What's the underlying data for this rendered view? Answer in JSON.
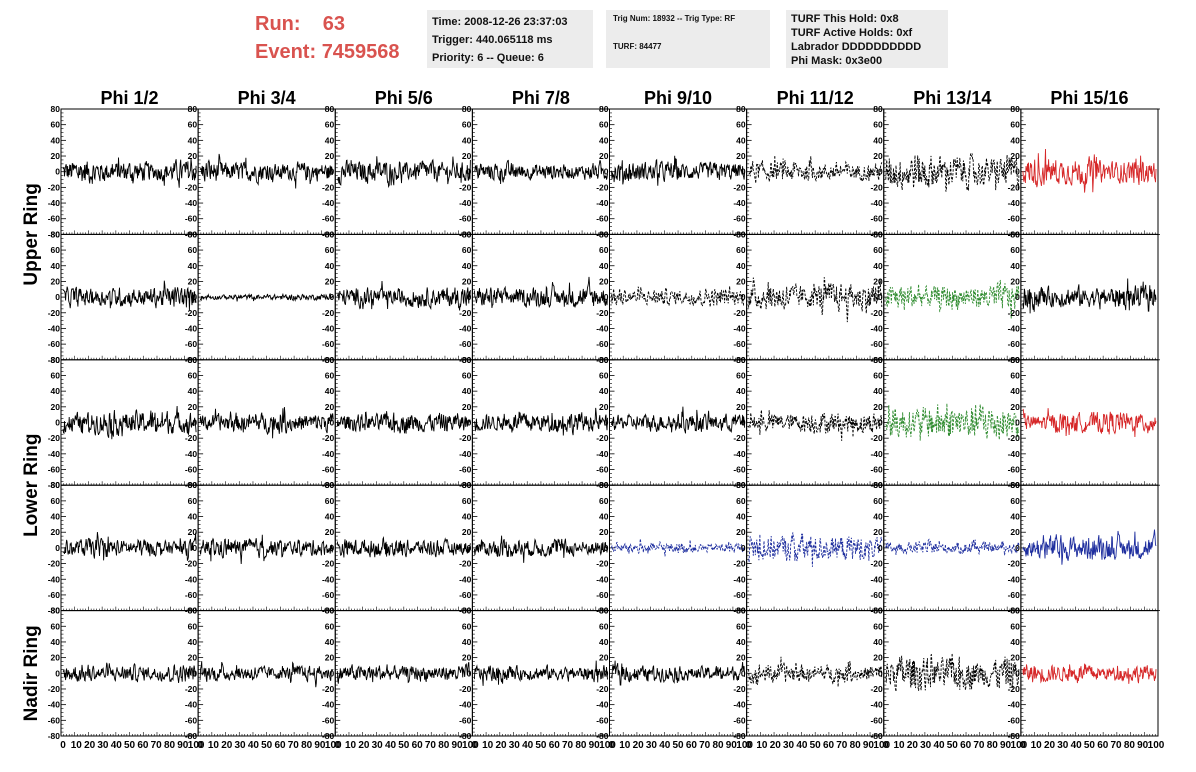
{
  "header": {
    "run_label": "Run:",
    "run_value": "63",
    "event_label": "Event:",
    "event_value": "7459568"
  },
  "info_time": {
    "time": "Time: 2008-12-26 23:37:03",
    "trigger": "Trigger: 440.065118 ms",
    "priority": "Priority: 6 -- Queue: 6"
  },
  "info_trig": {
    "trig": "Trig Num: 18932 -- Trig Type: RF",
    "turf": "TURF: 84477"
  },
  "info_turf": {
    "hold": "TURF This Hold: 0x8",
    "active": "TURF Active Holds: 0xf",
    "labrador": "Labrador DDDDDDDDDD",
    "phimask": "Phi Mask: 0x3e00"
  },
  "colors": {
    "header_text": "#d9534f",
    "info_bg": "#ececec",
    "black": "#000000",
    "red": "#d62728",
    "green": "#2e8b2e",
    "blue": "#1f2f9f"
  },
  "chart_data": {
    "type": "line",
    "column_labels": [
      "Phi 1/2",
      "Phi 3/4",
      "Phi 5/6",
      "Phi 7/8",
      "Phi 9/10",
      "Phi 11/12",
      "Phi 13/14",
      "Phi 15/16"
    ],
    "ring_labels": [
      "Upper Ring",
      "Lower Ring",
      "Nadir Ring"
    ],
    "ylim": [
      -80,
      80
    ],
    "xlim": [
      0,
      100
    ],
    "y_ticks": [
      80,
      60,
      40,
      20,
      0,
      -20,
      -40,
      -60,
      -80
    ],
    "y_tick_labels": [
      "80",
      "60",
      "40",
      "20",
      "0",
      "-20",
      "-40",
      "-60",
      "-80"
    ],
    "x_ticks": [
      0,
      10,
      20,
      30,
      40,
      50,
      60,
      70,
      80,
      90,
      100
    ],
    "x_tick_labels": [
      "0",
      "10",
      "20",
      "30",
      "40",
      "50",
      "60",
      "70",
      "80",
      "90",
      "100"
    ],
    "row_amplitudes": [
      [
        16,
        14,
        15,
        12,
        14,
        14,
        24,
        18
      ],
      [
        14,
        4,
        14,
        14,
        12,
        20,
        18,
        16
      ],
      [
        16,
        13,
        13,
        13,
        12,
        14,
        24,
        14
      ],
      [
        12,
        12,
        12,
        12,
        7,
        18,
        8,
        16
      ],
      [
        12,
        11,
        12,
        11,
        11,
        13,
        24,
        12
      ]
    ],
    "row_colors": [
      [
        "black",
        "black",
        "black",
        "black",
        "black",
        "black",
        "black",
        "red"
      ],
      [
        "black",
        "black",
        "black",
        "black",
        "black",
        "black",
        "green",
        "black"
      ],
      [
        "black",
        "black",
        "black",
        "black",
        "black",
        "black",
        "green",
        "red"
      ],
      [
        "black",
        "black",
        "black",
        "black",
        "blue",
        "blue",
        "blue",
        "blue"
      ],
      [
        "black",
        "black",
        "black",
        "black",
        "black",
        "black",
        "black",
        "red"
      ]
    ],
    "row_styles": [
      [
        "solid",
        "solid",
        "solid",
        "solid",
        "solid",
        "dashed",
        "dashed",
        "solid"
      ],
      [
        "solid",
        "solid",
        "solid",
        "solid",
        "dashed",
        "dashed",
        "dashed",
        "solid"
      ],
      [
        "solid",
        "solid",
        "solid",
        "solid",
        "solid",
        "dashed",
        "dashed",
        "solid"
      ],
      [
        "solid",
        "solid",
        "solid",
        "solid",
        "dashed",
        "dashed",
        "dashed",
        "solid"
      ],
      [
        "solid",
        "solid",
        "solid",
        "solid",
        "solid",
        "dashed",
        "dashed",
        "solid"
      ]
    ]
  }
}
